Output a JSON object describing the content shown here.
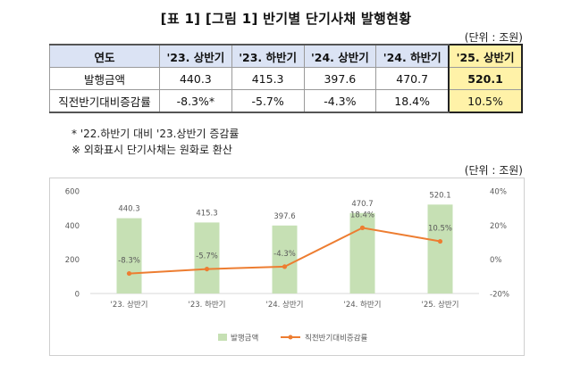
{
  "title": "[표 1] [그림 1] 반기별 단기사채 발행현황",
  "unit_label": "(단위 : 조원)",
  "table": {
    "corner": "연도",
    "columns": [
      "'23. 상반기",
      "'23. 하반기",
      "'24. 상반기",
      "'24. 하반기",
      "'25. 상반기"
    ],
    "rows": [
      {
        "label": "발행금액",
        "values": [
          "440.3",
          "415.3",
          "397.6",
          "470.7",
          "520.1"
        ]
      },
      {
        "label": "직전반기대비증감률",
        "values": [
          "-8.3%*",
          "-5.7%",
          "-4.3%",
          "18.4%",
          "10.5%"
        ]
      }
    ]
  },
  "notes": {
    "note1": "* '22.하반기 대비 '23.상반기 증감률",
    "note2": "※ 외화표시 단기사채는 원화로 환산"
  },
  "chart_unit_label": "(단위 : 조원)",
  "chart_data": {
    "type": "bar",
    "categories": [
      "'23. 상반기",
      "'23. 하반기",
      "'24. 상반기",
      "'24. 하반기",
      "'25. 상반기"
    ],
    "series": [
      {
        "name": "발행금액",
        "type": "bar",
        "axis": "left",
        "values": [
          440.3,
          415.3,
          397.6,
          470.7,
          520.1
        ],
        "labels": [
          "440.3",
          "415.3",
          "397.6",
          "470.7",
          "520.1"
        ]
      },
      {
        "name": "직전반기대비증감률",
        "type": "line",
        "axis": "right",
        "values": [
          -8.3,
          -5.7,
          -4.3,
          18.4,
          10.5
        ],
        "labels": [
          "-8.3%",
          "-5.7%",
          "-4.3%",
          "18.4%",
          "10.5%"
        ]
      }
    ],
    "y_left": {
      "min": 0,
      "max": 600,
      "ticks": [
        "0",
        "200",
        "400",
        "600"
      ],
      "tick_values": [
        0,
        200,
        400,
        600
      ]
    },
    "y_right": {
      "min": -20,
      "max": 40,
      "ticks": [
        "-20%",
        "0%",
        "20%",
        "40%"
      ],
      "tick_values": [
        -20,
        0,
        20,
        40
      ]
    },
    "legend_position": "bottom",
    "grid": false
  },
  "colors": {
    "bar": "#c6e0b4",
    "line": "#ed7d31",
    "axis_text": "#595959"
  }
}
